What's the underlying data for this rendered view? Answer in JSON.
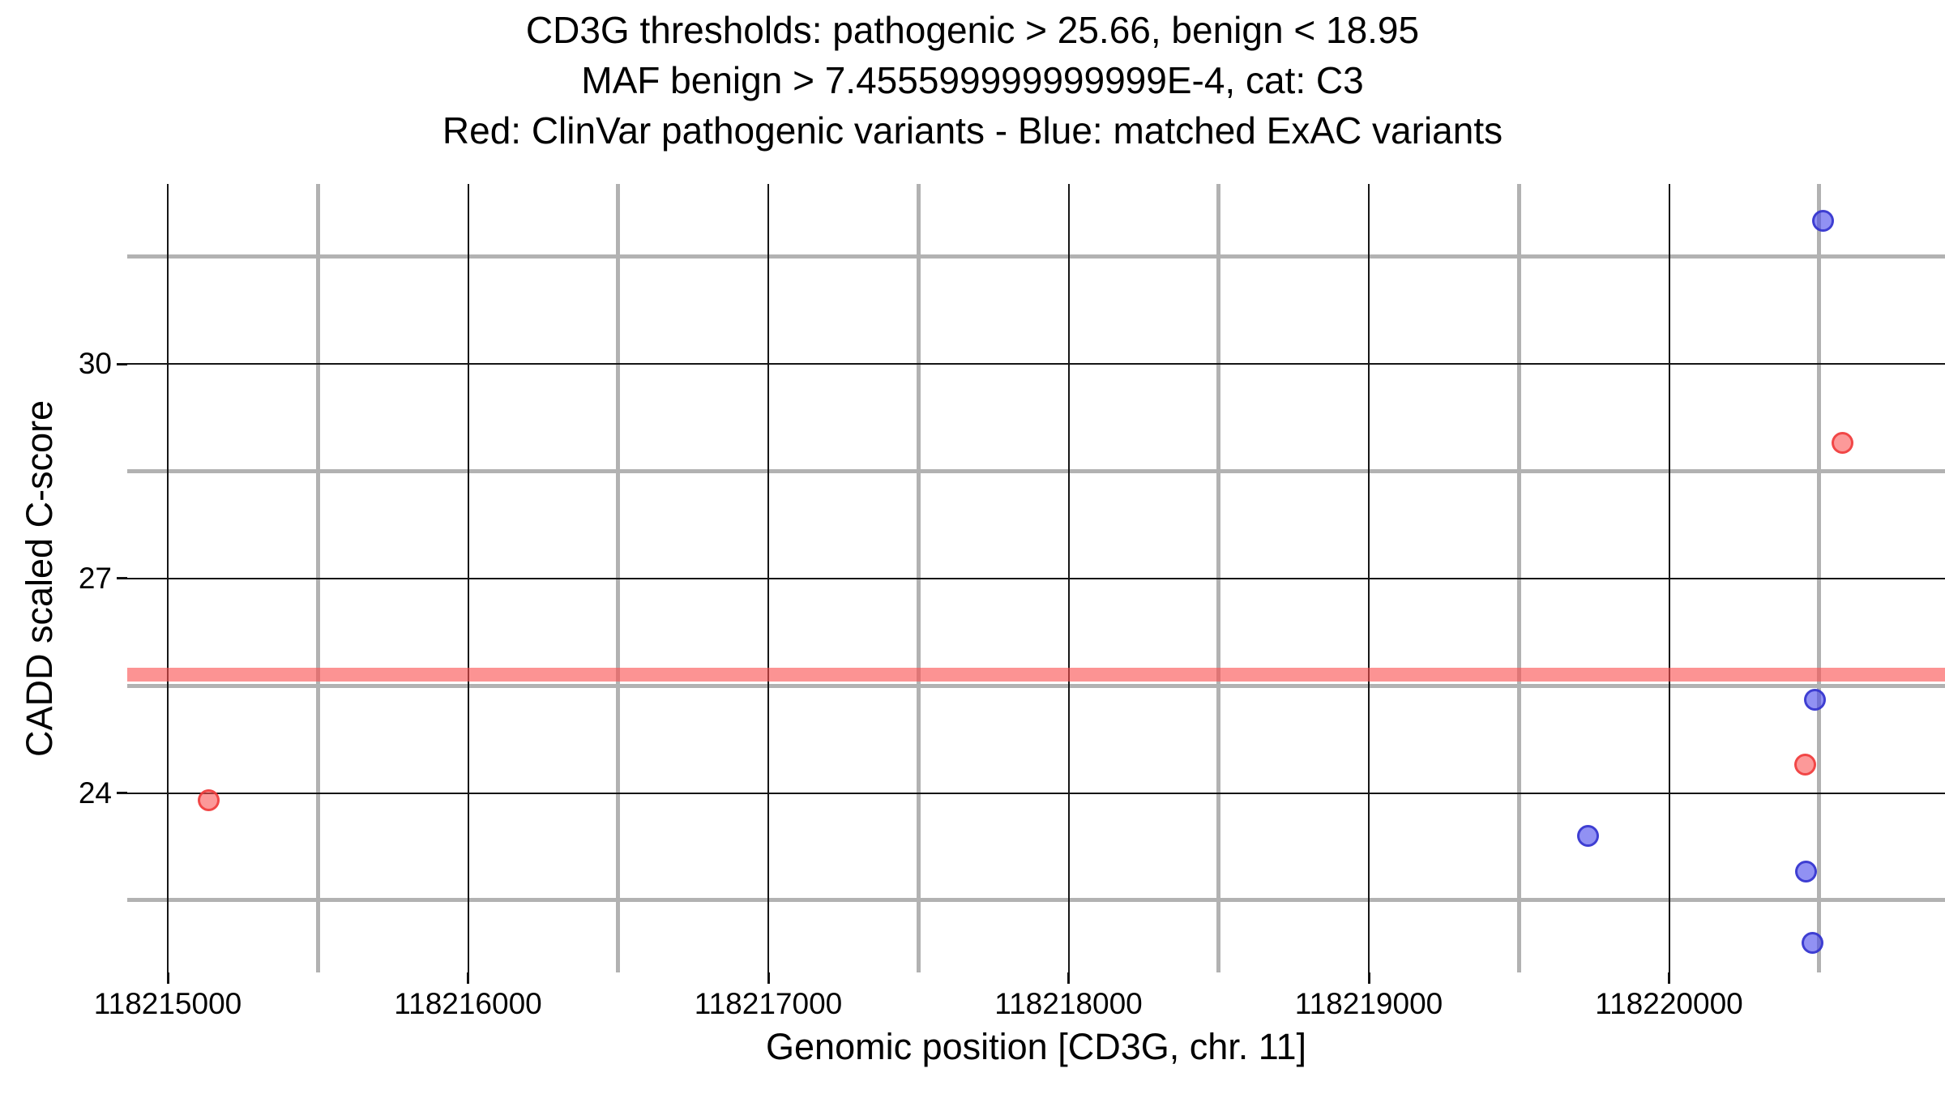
{
  "title": {
    "line1": "CD3G thresholds: pathogenic > 25.66, benign < 18.95",
    "line2": "MAF benign > 7.455599999999999E-4, cat: C3",
    "line3": "Red: ClinVar pathogenic variants - Blue: matched ExAC variants"
  },
  "chart_data": {
    "type": "scatter",
    "title": "CD3G thresholds: pathogenic > 25.66, benign < 18.95",
    "subtitle": "MAF benign > 7.455599999999999E-4, cat: C3",
    "legend_note": "Red: ClinVar pathogenic variants - Blue: matched ExAC variants",
    "legend_position": "none",
    "grid": true,
    "xlabel": "Genomic position [CD3G, chr. 11]",
    "ylabel": "CADD scaled C-score",
    "gene": "CD3G",
    "chromosome": "11",
    "thresholds": {
      "pathogenic": 25.66,
      "benign": 18.95,
      "maf_benign": "7.455599999999999E-4",
      "category": "C3"
    },
    "x_domain": [
      118214865,
      118220919
    ],
    "y_domain": [
      21.49,
      32.52
    ],
    "x_major_ticks": [
      118215000,
      118216000,
      118217000,
      118218000,
      118219000,
      118220000
    ],
    "x_tick_labels": [
      "118215000",
      "118216000",
      "118217000",
      "118218000",
      "118219000",
      "118220000"
    ],
    "x_minor_ticks": [
      118215500,
      118216500,
      118217500,
      118218500,
      118219500,
      118220500
    ],
    "y_major_ticks": [
      24,
      27,
      30
    ],
    "y_tick_labels": [
      "24",
      "27",
      "30"
    ],
    "y_minor_ticks": [
      22.5,
      25.5,
      28.5,
      31.5
    ],
    "threshold_band": {
      "value": 25.66,
      "color": "rgba(250,80,80,0.62)",
      "thickness_px": 17
    },
    "colors": {
      "grid_major": "#161616",
      "grid_minor": "#b2b2b2",
      "pathogenic_fill": "rgba(250,85,85,0.6)",
      "pathogenic_stroke": "rgba(240,58,58,0.85)",
      "benign_fill": "rgba(72,72,235,0.6)",
      "benign_stroke": "rgba(48,48,205,0.85)"
    },
    "series": [
      {
        "name": "ClinVar pathogenic variants",
        "color_key": "pathogenic",
        "points": [
          {
            "x": 118215137,
            "y": 23.9
          },
          {
            "x": 118220577,
            "y": 28.9
          },
          {
            "x": 118220453,
            "y": 24.4
          }
        ]
      },
      {
        "name": "matched ExAC variants",
        "color_key": "benign",
        "points": [
          {
            "x": 118219731,
            "y": 23.4
          },
          {
            "x": 118220512,
            "y": 32.0
          },
          {
            "x": 118220485,
            "y": 25.3
          },
          {
            "x": 118220455,
            "y": 22.9
          },
          {
            "x": 118220477,
            "y": 21.9
          }
        ]
      }
    ]
  }
}
